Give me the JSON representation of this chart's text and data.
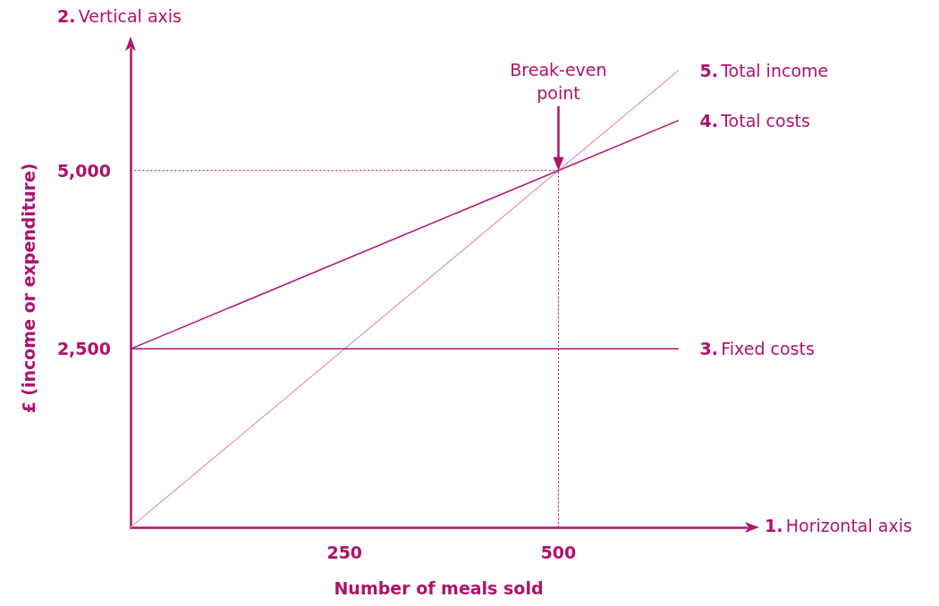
{
  "chart_data": {
    "type": "line",
    "xlabel": "Number of meals sold",
    "ylabel": "£ (income or expenditure)",
    "xlim": [
      0,
      720
    ],
    "ylim": [
      0,
      6700
    ],
    "xticks": [
      250,
      500
    ],
    "yticks": [
      {
        "value": 2500,
        "label": "2,500"
      },
      {
        "value": 5000,
        "label": "5,000"
      }
    ],
    "series": [
      {
        "name": "5. Total income",
        "color": "#e3a3c8",
        "x": [
          0,
          640
        ],
        "values": [
          0,
          6400
        ]
      },
      {
        "name": "4. Total costs",
        "color": "#b0116c",
        "x": [
          0,
          640
        ],
        "values": [
          2500,
          5700
        ]
      },
      {
        "name": "3. Fixed costs",
        "color": "#b0116c",
        "x": [
          0,
          640
        ],
        "values": [
          2500,
          2500
        ]
      },
      {
        "color": "#b0116c",
        "line_style": "dotted",
        "x": [
          500,
          500
        ],
        "values": [
          0,
          5000
        ]
      },
      {
        "color": "#b0116c",
        "line_style": "dotted",
        "x": [
          0,
          500
        ],
        "values": [
          5000,
          5000
        ]
      }
    ],
    "annotations": [
      "1. Horizontal axis",
      "2. Vertical axis",
      "Break-even point"
    ],
    "marker": "none",
    "line_style": "solid",
    "grid": false,
    "legend": false
  }
}
